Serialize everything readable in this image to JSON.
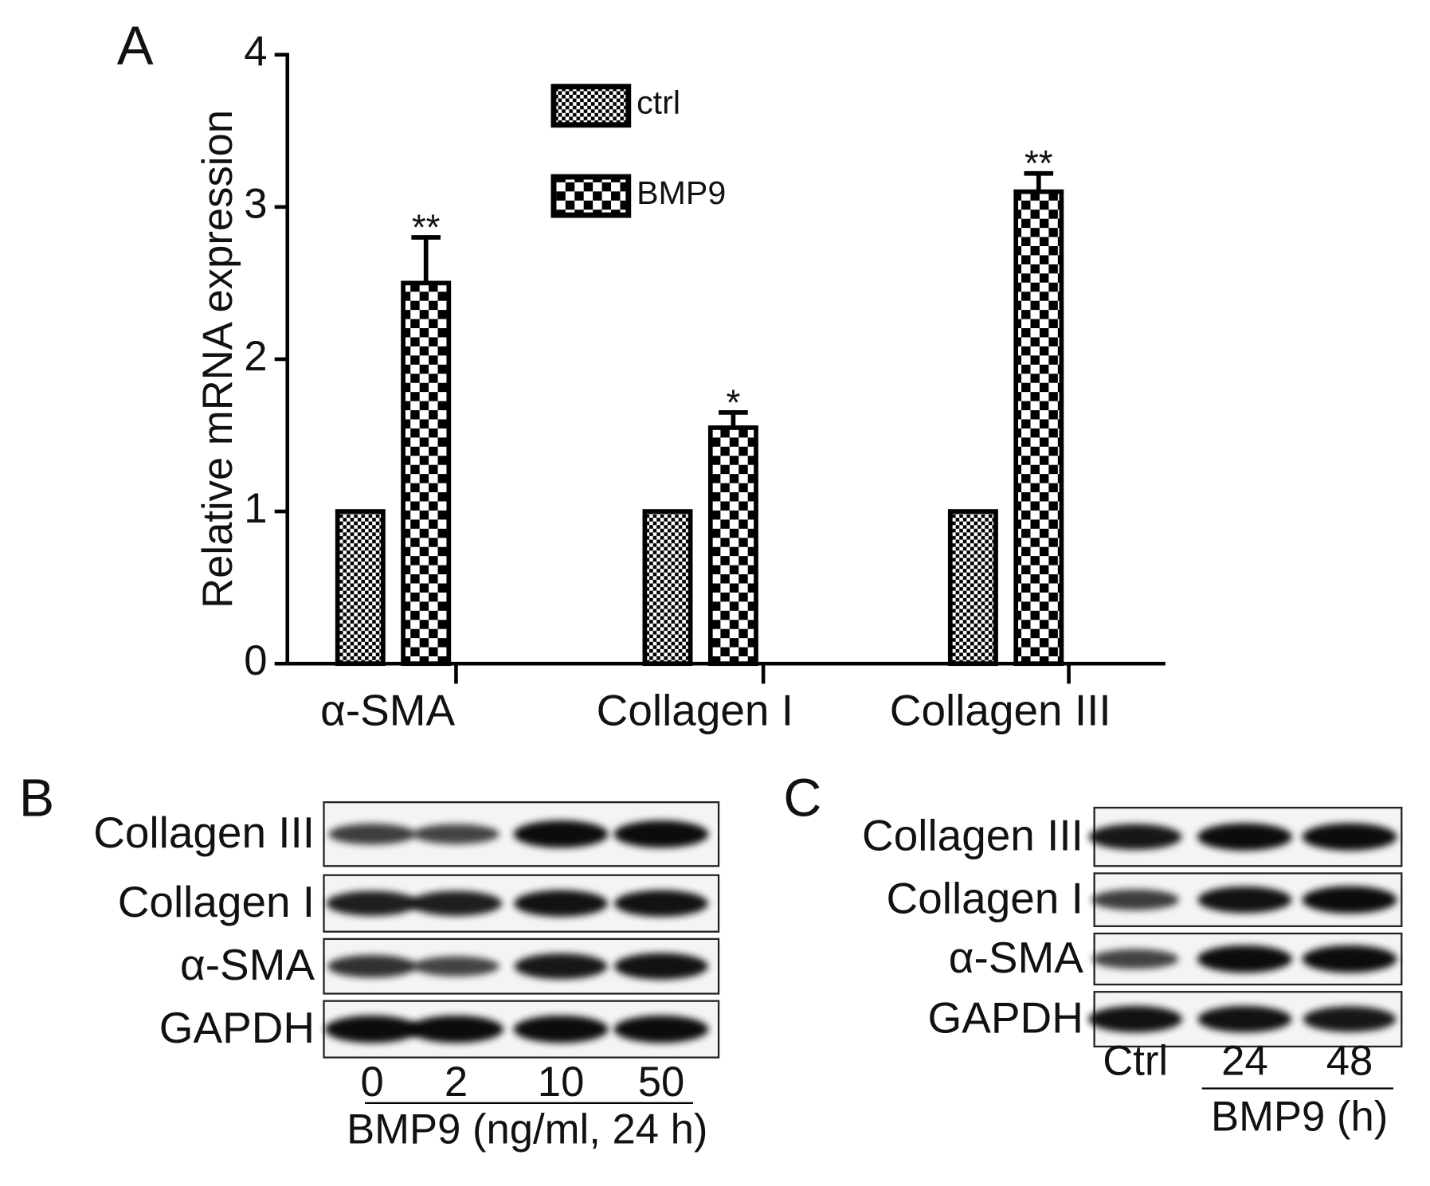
{
  "chart_data": {
    "type": "bar",
    "panel": "A",
    "ylabel": "Relative mRNA expression",
    "categories": [
      "α-SMA",
      "Collagen I",
      "Collagen III"
    ],
    "series": [
      {
        "name": "ctrl",
        "color": "#000000",
        "values": [
          1,
          1,
          1
        ]
      },
      {
        "name": "BMP9",
        "color": "#000000",
        "values": [
          2.5,
          1.55,
          3.1
        ],
        "errors": [
          0.3,
          0.1,
          0.12
        ],
        "annotations": [
          "**",
          "*",
          "**"
        ]
      }
    ],
    "ylim": [
      0,
      4
    ],
    "yticks": [
      0,
      1,
      2,
      3,
      4
    ]
  },
  "blots": [
    {
      "panel": "B",
      "rows": [
        "Collagen III",
        "Collagen I",
        "α-SMA",
        "GAPDH"
      ],
      "lanes": [
        "0",
        "2",
        "10",
        "50"
      ],
      "xlabel": "BMP9 (ng/ml, 24 h)"
    },
    {
      "panel": "C",
      "rows": [
        "Collagen III",
        "Collagen I",
        "α-SMA",
        "GAPDH"
      ],
      "lanes": [
        "Ctrl",
        "24",
        "48"
      ],
      "xlabel": "BMP9 (h)"
    }
  ]
}
